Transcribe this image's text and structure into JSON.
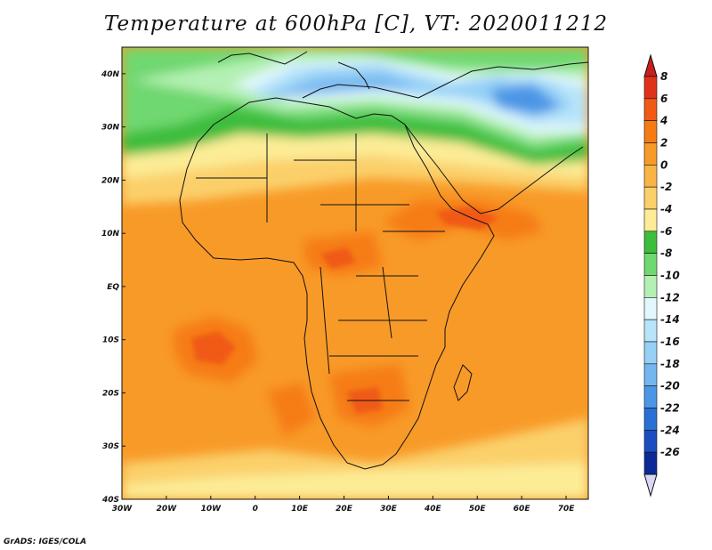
{
  "title": "Temperature at 600hPa [C], VT: 2020011212",
  "credit": "GrADS: IGES/COLA",
  "map": {
    "region": "Africa",
    "variable": "Temperature",
    "level": "600hPa",
    "units": "C",
    "valid_time": "2020011212",
    "lon_range": [
      -30,
      75
    ],
    "lat_range": [
      -40,
      45
    ],
    "lat_ticks": [
      {
        "value": 40,
        "label": "40N"
      },
      {
        "value": 30,
        "label": "30N"
      },
      {
        "value": 20,
        "label": "20N"
      },
      {
        "value": 10,
        "label": "10N"
      },
      {
        "value": 0,
        "label": "EQ"
      },
      {
        "value": -10,
        "label": "10S"
      },
      {
        "value": -20,
        "label": "20S"
      },
      {
        "value": -30,
        "label": "30S"
      },
      {
        "value": -40,
        "label": "40S"
      }
    ],
    "lon_ticks": [
      {
        "value": -30,
        "label": "30W"
      },
      {
        "value": -20,
        "label": "20W"
      },
      {
        "value": -10,
        "label": "10W"
      },
      {
        "value": 0,
        "label": "0"
      },
      {
        "value": 10,
        "label": "10E"
      },
      {
        "value": 20,
        "label": "20E"
      },
      {
        "value": 30,
        "label": "30E"
      },
      {
        "value": 40,
        "label": "40E"
      },
      {
        "value": 50,
        "label": "50E"
      },
      {
        "value": 60,
        "label": "60E"
      },
      {
        "value": 70,
        "label": "70E"
      }
    ]
  },
  "colorbar": {
    "levels": [
      {
        "label": "8",
        "color": "#e0321a"
      },
      {
        "label": "6",
        "color": "#f05a14"
      },
      {
        "label": "4",
        "color": "#f67b14"
      },
      {
        "label": "2",
        "color": "#f89a28"
      },
      {
        "label": "0",
        "color": "#f9b446"
      },
      {
        "label": "-2",
        "color": "#fbd06a"
      },
      {
        "label": "-4",
        "color": "#fcec96"
      },
      {
        "label": "-6",
        "color": "#3cbd3c"
      },
      {
        "label": "-8",
        "color": "#70d870"
      },
      {
        "label": "-10",
        "color": "#b4f0b4"
      },
      {
        "label": "-12",
        "color": "#e2f8fc"
      },
      {
        "label": "-14",
        "color": "#b8e4fa"
      },
      {
        "label": "-16",
        "color": "#96d0f6"
      },
      {
        "label": "-18",
        "color": "#74b6f0"
      },
      {
        "label": "-20",
        "color": "#4c96e6"
      },
      {
        "label": "-22",
        "color": "#2a70d4"
      },
      {
        "label": "-24",
        "color": "#1a4ec0"
      },
      {
        "label": "-26",
        "color": "#0c2a96"
      }
    ],
    "top_cap_color": "#c81e1e",
    "bottom_cap_color": "#d8d8f6"
  }
}
